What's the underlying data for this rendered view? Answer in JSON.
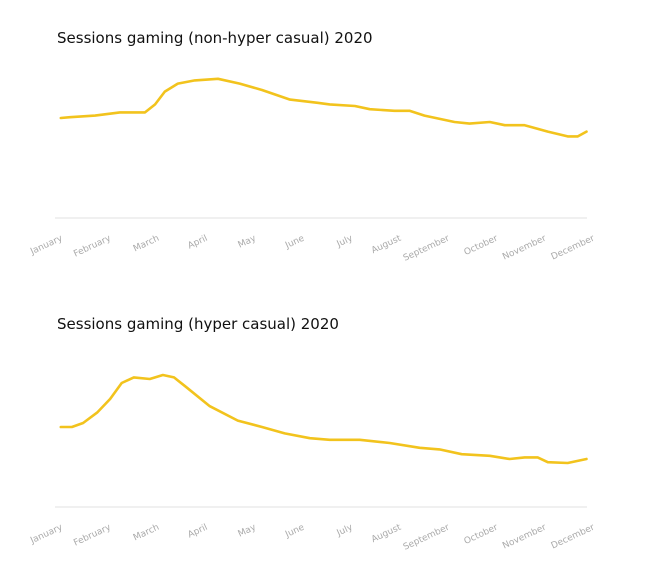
{
  "chart_data": [
    {
      "type": "line",
      "title": "Sessions gaming (non-hyper casual) 2020",
      "color": "#f2c31d",
      "x": [
        0.12,
        0.31,
        0.83,
        1.34,
        1.86,
        2.07,
        2.27,
        2.54,
        2.89,
        3.37,
        3.82,
        4.28,
        4.86,
        5.43,
        5.68,
        6.2,
        6.51,
        7.02,
        7.33,
        7.64,
        8.26,
        8.57,
        8.99,
        9.3,
        9.71,
        10.19,
        10.6,
        10.81,
        10.99
      ],
      "values": [
        62.5,
        63,
        64,
        66,
        66,
        71,
        79,
        84,
        86,
        87,
        84,
        80,
        74,
        72,
        71,
        70,
        68,
        67,
        67,
        64,
        60,
        59,
        60,
        58,
        58,
        54,
        51,
        51,
        54
      ],
      "xlim": [
        0,
        11
      ],
      "ylim": [
        0,
        100
      ],
      "xticks": [
        {
          "value": 0,
          "label": "January"
        },
        {
          "value": 1,
          "label": "February"
        },
        {
          "value": 2,
          "label": "March"
        },
        {
          "value": 3,
          "label": "April"
        },
        {
          "value": 4,
          "label": "May"
        },
        {
          "value": 5,
          "label": "June"
        },
        {
          "value": 6,
          "label": "July"
        },
        {
          "value": 7,
          "label": "August"
        },
        {
          "value": 8,
          "label": "September"
        },
        {
          "value": 9,
          "label": "October"
        },
        {
          "value": 10,
          "label": "November"
        },
        {
          "value": 11,
          "label": "December"
        }
      ]
    },
    {
      "type": "line",
      "title": "Sessions gaming (hyper casual) 2020",
      "color": "#f2c31d",
      "x": [
        0.12,
        0.35,
        0.58,
        0.87,
        1.14,
        1.38,
        1.63,
        1.96,
        2.23,
        2.46,
        2.69,
        3.2,
        3.78,
        4.28,
        4.75,
        5.27,
        5.68,
        6.3,
        6.92,
        7.54,
        7.95,
        8.41,
        8.99,
        9.4,
        9.71,
        9.98,
        10.19,
        10.6,
        10.99
      ],
      "values": [
        50,
        50,
        52.5,
        59,
        67.5,
        77.5,
        81,
        80,
        82.5,
        81,
        75.5,
        63,
        54,
        50,
        46,
        43,
        42,
        42,
        40,
        37,
        36,
        33,
        32,
        30,
        31,
        31,
        28,
        27.5,
        30
      ],
      "xlim": [
        0,
        11
      ],
      "ylim": [
        0,
        100
      ],
      "xticks": [
        {
          "value": 0,
          "label": "January"
        },
        {
          "value": 1,
          "label": "February"
        },
        {
          "value": 2,
          "label": "March"
        },
        {
          "value": 3,
          "label": "April"
        },
        {
          "value": 4,
          "label": "May"
        },
        {
          "value": 5,
          "label": "June"
        },
        {
          "value": 6,
          "label": "July"
        },
        {
          "value": 7,
          "label": "August"
        },
        {
          "value": 8,
          "label": "September"
        },
        {
          "value": 9,
          "label": "October"
        },
        {
          "value": 10,
          "label": "November"
        },
        {
          "value": 11,
          "label": "December"
        }
      ]
    }
  ]
}
